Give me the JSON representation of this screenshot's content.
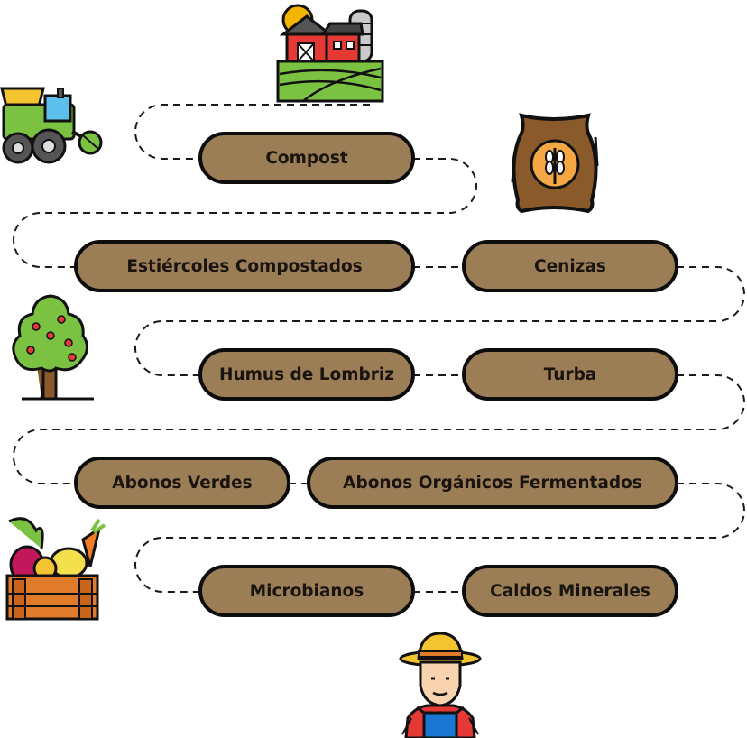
{
  "diagram": {
    "nodes": [
      {
        "id": "compost",
        "label": "Compost"
      },
      {
        "id": "estiercoles",
        "label": "Estiércoles Compostados"
      },
      {
        "id": "cenizas",
        "label": "Cenizas"
      },
      {
        "id": "humus",
        "label": "Humus de Lombriz"
      },
      {
        "id": "turba",
        "label": "Turba"
      },
      {
        "id": "abonos-verdes",
        "label": "Abonos Verdes"
      },
      {
        "id": "fermentados",
        "label": "Abonos Orgánicos Fermentados"
      },
      {
        "id": "microbianos",
        "label": "Microbianos"
      },
      {
        "id": "caldos",
        "label": "Caldos Minerales"
      }
    ],
    "icons": [
      "farm-barn-icon",
      "tractor-icon",
      "grain-sack-icon",
      "fruit-tree-icon",
      "vegetable-crate-icon",
      "farmer-icon"
    ],
    "colors": {
      "pill_fill": "#9b7d56",
      "outline": "#0d0d0d"
    }
  }
}
